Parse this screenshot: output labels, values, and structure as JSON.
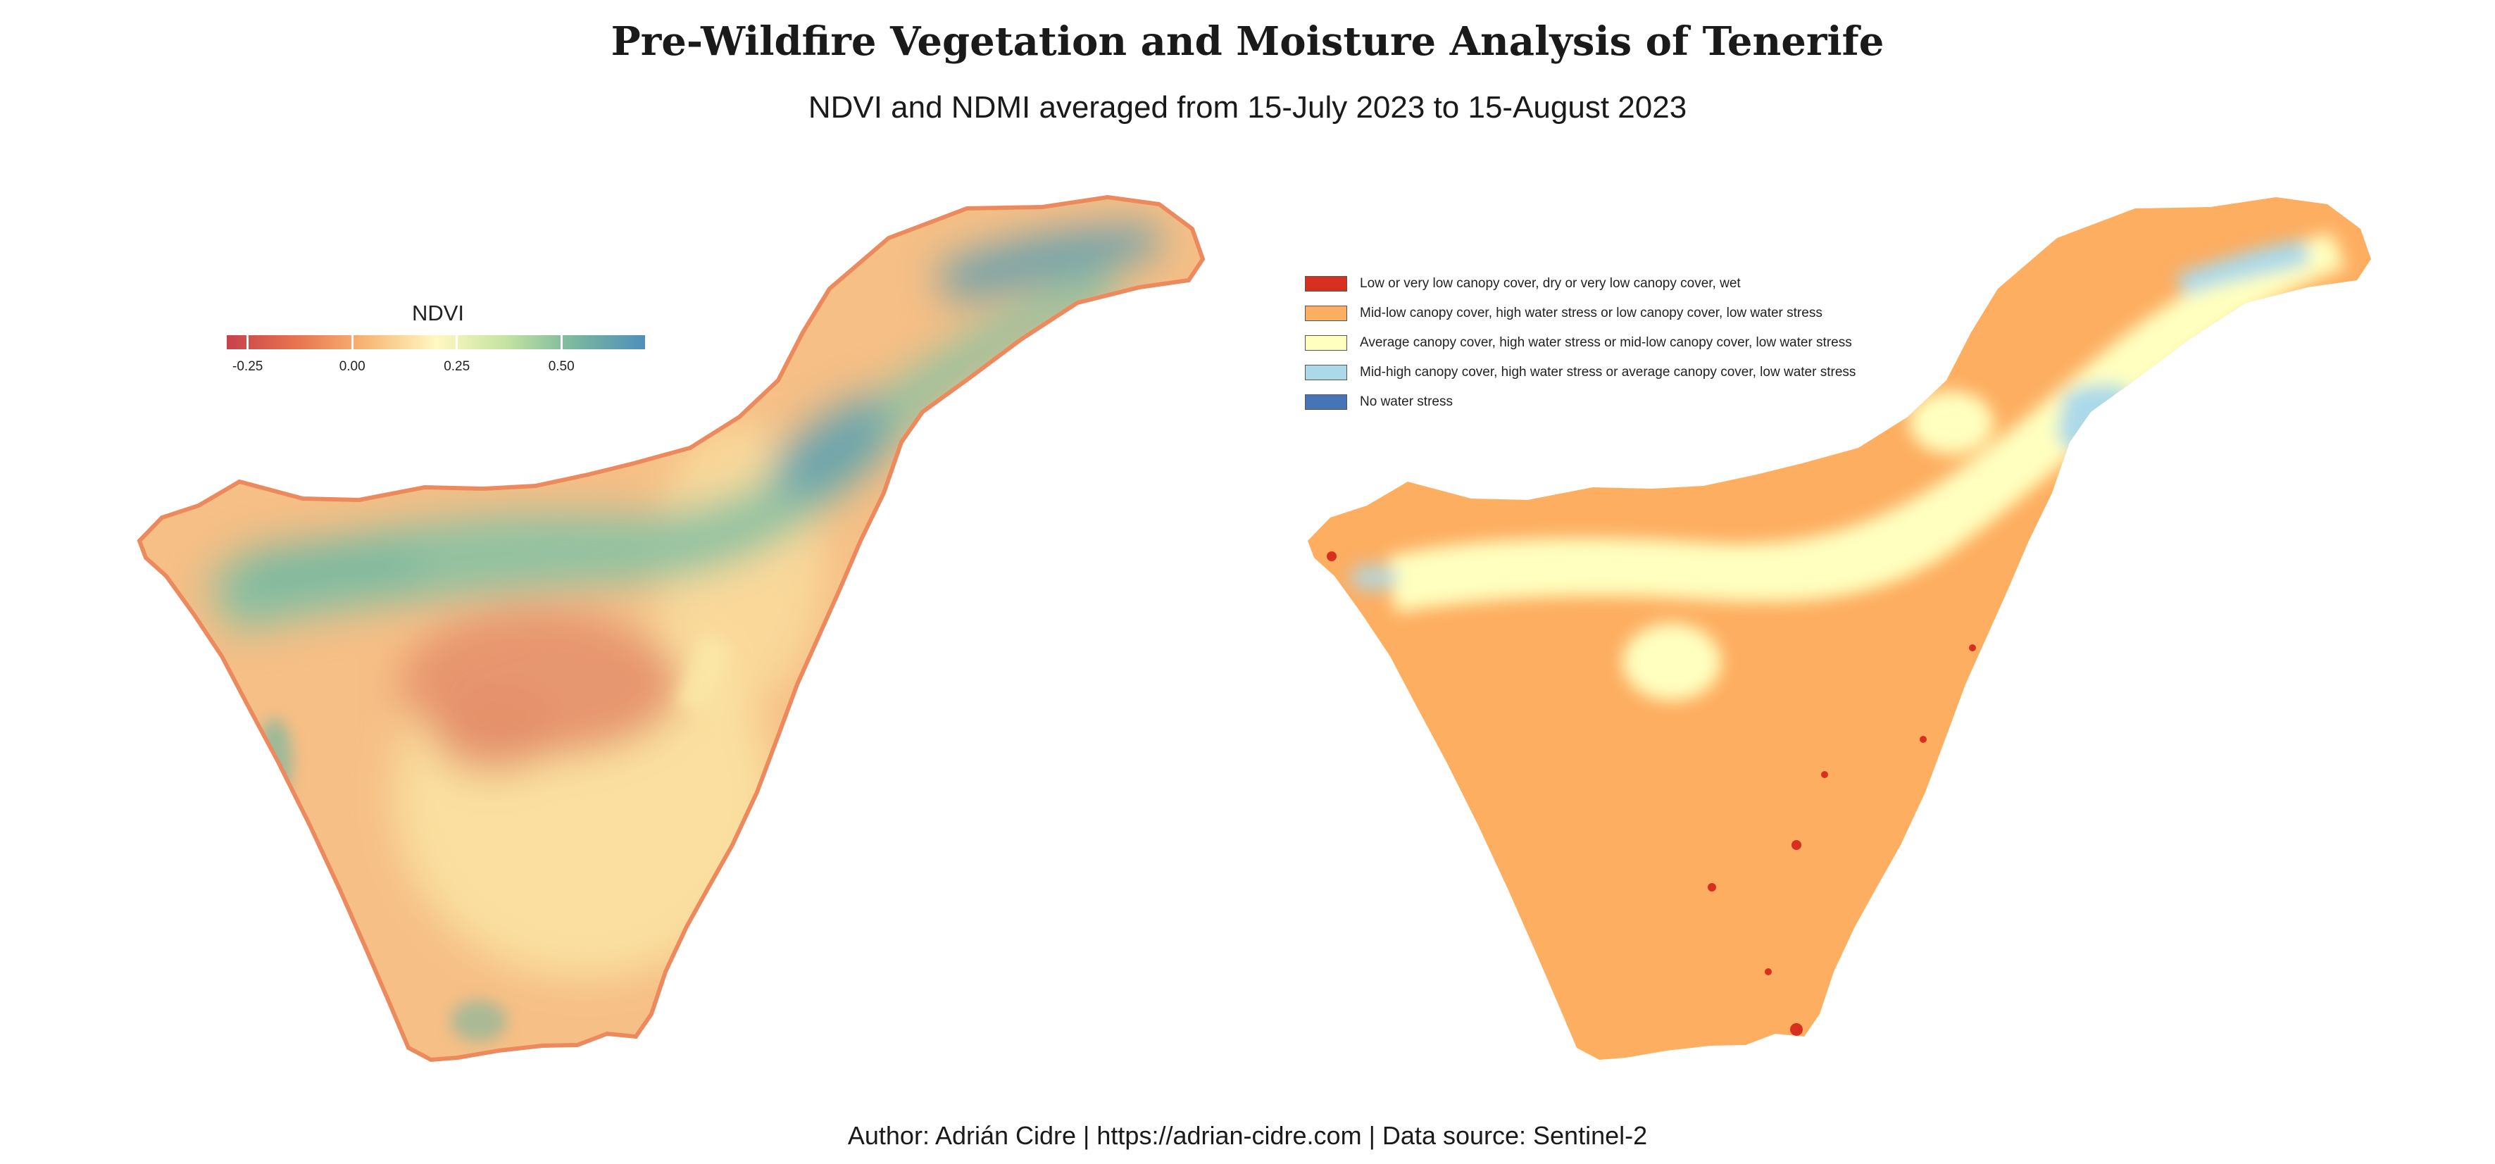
{
  "title": "Pre-Wildfire Vegetation and Moisture Analysis of Tenerife",
  "subtitle": "NDVI and NDMI averaged from 15-July 2023 to 15-August 2023",
  "caption": "Author: Adrián Cidre | https://adrian-cidre.com | Data source: Sentinel-2",
  "ndvi_legend": {
    "title": "NDVI",
    "range": [
      -0.3,
      0.7
    ],
    "ticks": [
      {
        "value": -0.25,
        "label": "-0.25"
      },
      {
        "value": 0.0,
        "label": "0.00"
      },
      {
        "value": 0.25,
        "label": "0.25"
      },
      {
        "value": 0.5,
        "label": "0.50"
      }
    ],
    "colors": [
      "#c8414b",
      "#e8734f",
      "#f8b776",
      "#fff8c2",
      "#c5e3a2",
      "#79b69f",
      "#4f8fbb"
    ]
  },
  "ndmi_legend": {
    "items": [
      {
        "label": "Low or very low canopy cover, dry or very low canopy cover, wet",
        "color": "#d7301f"
      },
      {
        "label": "Mid-low canopy cover, high water stress or low canopy cover, low water stress",
        "color": "#fdae61"
      },
      {
        "label": "Average canopy cover, high water stress or mid-low canopy cover, low water stress",
        "color": "#ffffbf"
      },
      {
        "label": "Mid-high canopy cover, high water stress or average canopy cover, low water stress",
        "color": "#abd9e9"
      },
      {
        "label": "No water stress",
        "color": "#4575b4"
      }
    ]
  },
  "map_colors": {
    "ndvi_base": "#f6bf86",
    "ndvi_coast": "#ec8a5e",
    "ndvi_crater": "#e48f6a",
    "ndvi_light": "#fbe9a8",
    "ndvi_green": "#8cc2a2",
    "ndvi_teal": "#5f9db0",
    "ndmi_base": "#fdae61",
    "ndmi_yellow": "#ffffbf",
    "ndmi_blue": "#abd9e9",
    "ndmi_red": "#d7301f"
  }
}
